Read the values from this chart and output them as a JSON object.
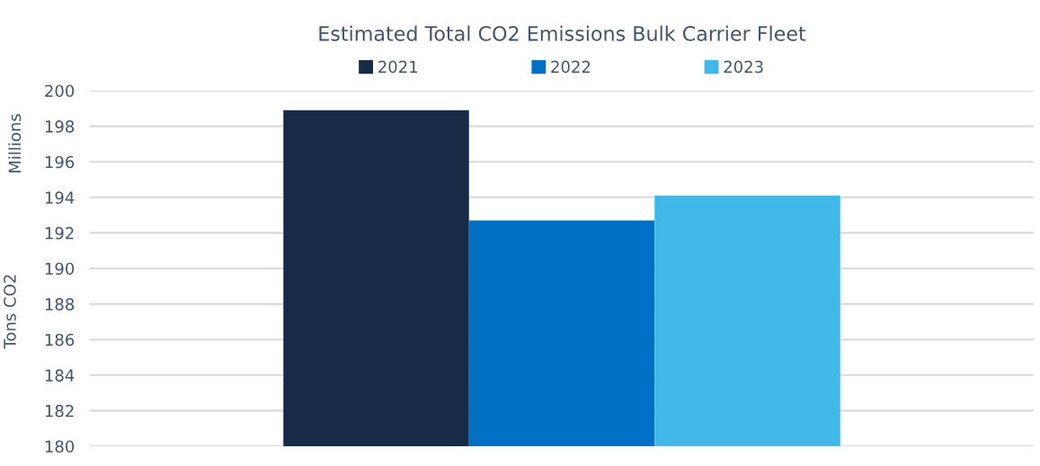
{
  "chart_data": {
    "type": "bar",
    "title": "Estimated Total CO2 Emissions Bulk Carrier Fleet",
    "ylabel": "Tons CO2",
    "annotations": [
      "Millions"
    ],
    "categories": [
      null
    ],
    "series": [
      {
        "name": "2021",
        "color": "#172b46",
        "values": [
          198.9
        ]
      },
      {
        "name": "2022",
        "color": "#0070c4",
        "values": [
          192.7
        ]
      },
      {
        "name": "2023",
        "color": "#42b7e9",
        "values": [
          194.1
        ]
      }
    ],
    "ylim": [
      180,
      200
    ],
    "yticks": [
      180,
      182,
      184,
      186,
      188,
      190,
      192,
      194,
      196,
      198,
      200
    ],
    "grid": "y",
    "legend": "top"
  }
}
